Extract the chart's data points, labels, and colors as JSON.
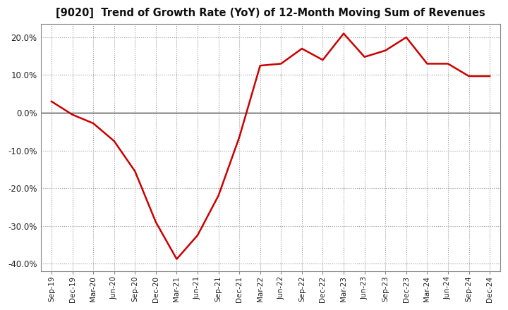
{
  "title": "[9020]  Trend of Growth Rate (YoY) of 12-Month Moving Sum of Revenues",
  "line_color": "#cc0000",
  "line_width": 1.8,
  "background_color": "#ffffff",
  "plot_bg_color": "#ffffff",
  "grid_color": "#999999",
  "ylim": [
    -0.42,
    0.235
  ],
  "yticks": [
    -0.4,
    -0.3,
    -0.2,
    -0.1,
    0.0,
    0.1,
    0.2
  ],
  "x_labels": [
    "Sep-19",
    "Dec-19",
    "Mar-20",
    "Jun-20",
    "Sep-20",
    "Dec-20",
    "Mar-21",
    "Jun-21",
    "Sep-21",
    "Dec-21",
    "Mar-22",
    "Jun-22",
    "Sep-22",
    "Dec-22",
    "Mar-23",
    "Jun-23",
    "Sep-23",
    "Dec-23",
    "Mar-24",
    "Jun-24",
    "Sep-24",
    "Dec-24"
  ],
  "values": [
    0.03,
    -0.005,
    -0.028,
    -0.075,
    -0.155,
    -0.29,
    -0.388,
    -0.325,
    -0.22,
    -0.065,
    0.125,
    0.13,
    0.17,
    0.14,
    0.21,
    0.148,
    0.165,
    0.2,
    0.13,
    0.13,
    0.097,
    0.097
  ]
}
